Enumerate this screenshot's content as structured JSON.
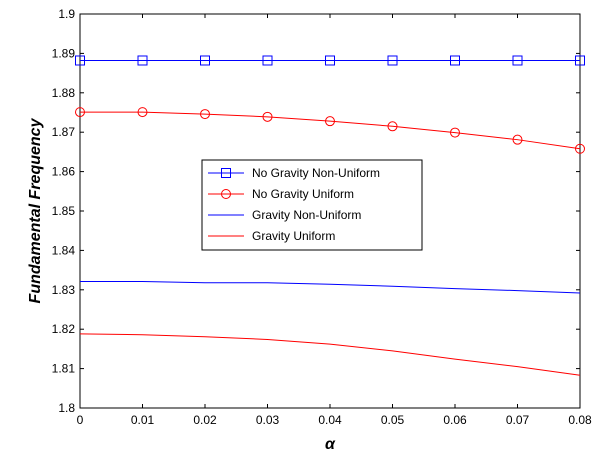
{
  "chart_data": {
    "type": "line",
    "title": "",
    "xlabel": "α",
    "ylabel": "Fundamental Frequency",
    "xlim": [
      0,
      0.08
    ],
    "ylim": [
      1.8,
      1.9
    ],
    "x_ticks": [
      0,
      0.01,
      0.02,
      0.03,
      0.04,
      0.05,
      0.06,
      0.07,
      0.08
    ],
    "x_tick_labels": [
      "0",
      "0.01",
      "0.02",
      "0.03",
      "0.04",
      "0.05",
      "0.06",
      "0.07",
      "0.08"
    ],
    "y_ticks": [
      1.8,
      1.81,
      1.82,
      1.83,
      1.84,
      1.85,
      1.86,
      1.87,
      1.88,
      1.89,
      1.9
    ],
    "y_tick_labels": [
      "1.8",
      "1.81",
      "1.82",
      "1.83",
      "1.84",
      "1.85",
      "1.86",
      "1.87",
      "1.88",
      "1.89",
      "1.9"
    ],
    "grid": false,
    "legend_position": "center-right",
    "x": [
      0,
      0.01,
      0.02,
      0.03,
      0.04,
      0.05,
      0.06,
      0.07,
      0.08
    ],
    "series": [
      {
        "name": "No Gravity Non-Uniform",
        "color": "#0000ff",
        "marker": "square",
        "values": [
          1.8882,
          1.8882,
          1.8882,
          1.8882,
          1.8882,
          1.8882,
          1.8882,
          1.8882,
          1.8882
        ]
      },
      {
        "name": "No Gravity Uniform",
        "color": "#ff0000",
        "marker": "circle",
        "values": [
          1.8751,
          1.8751,
          1.8746,
          1.8739,
          1.8728,
          1.8715,
          1.8699,
          1.8681,
          1.8658
        ]
      },
      {
        "name": "Gravity Non-Uniform",
        "color": "#0000ff",
        "marker": "none",
        "values": [
          1.8321,
          1.8321,
          1.8318,
          1.8318,
          1.8314,
          1.8309,
          1.8303,
          1.8298,
          1.8292
        ]
      },
      {
        "name": "Gravity Uniform",
        "color": "#ff0000",
        "marker": "none",
        "values": [
          1.8188,
          1.8186,
          1.8181,
          1.8174,
          1.8162,
          1.8145,
          1.8124,
          1.8105,
          1.8083
        ]
      }
    ]
  }
}
